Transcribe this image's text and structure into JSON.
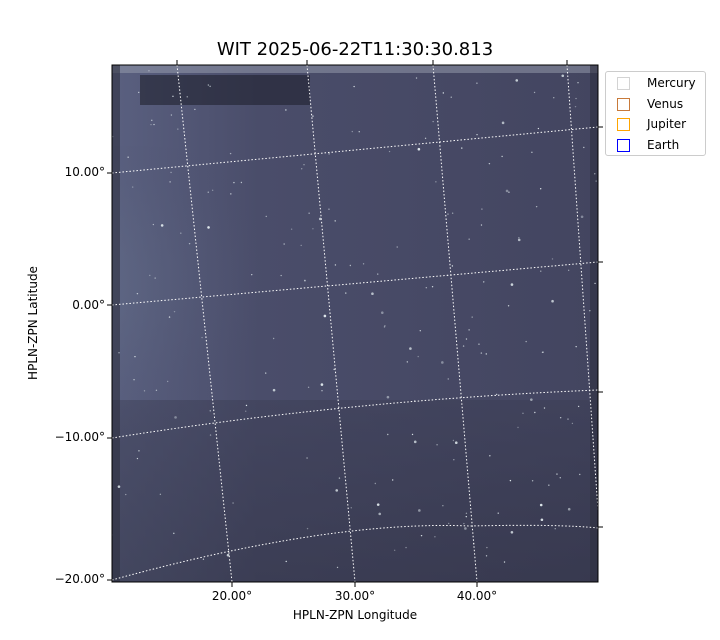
{
  "chart_data": {
    "type": "heatmap",
    "title": "WIT 2025-06-22T11:30:30.813",
    "xlabel": "HPLN-ZPN Longitude",
    "ylabel": "HPLN-ZPN Latitude",
    "xticks": [
      "20.00°",
      "30.00°",
      "40.00°"
    ],
    "yticks": [
      "10.00°",
      "0.00°",
      "−10.00°",
      "−20.00°"
    ],
    "grid": true,
    "colormap": "bone",
    "legend_placement": "outside-top-right",
    "legend": [
      {
        "name": "Mercury",
        "color": "#d3d3d3"
      },
      {
        "name": "Venus",
        "color": "#c87a3a"
      },
      {
        "name": "Jupiter",
        "color": "#ffa500"
      },
      {
        "name": "Earth",
        "color": "#0000ff"
      }
    ]
  }
}
